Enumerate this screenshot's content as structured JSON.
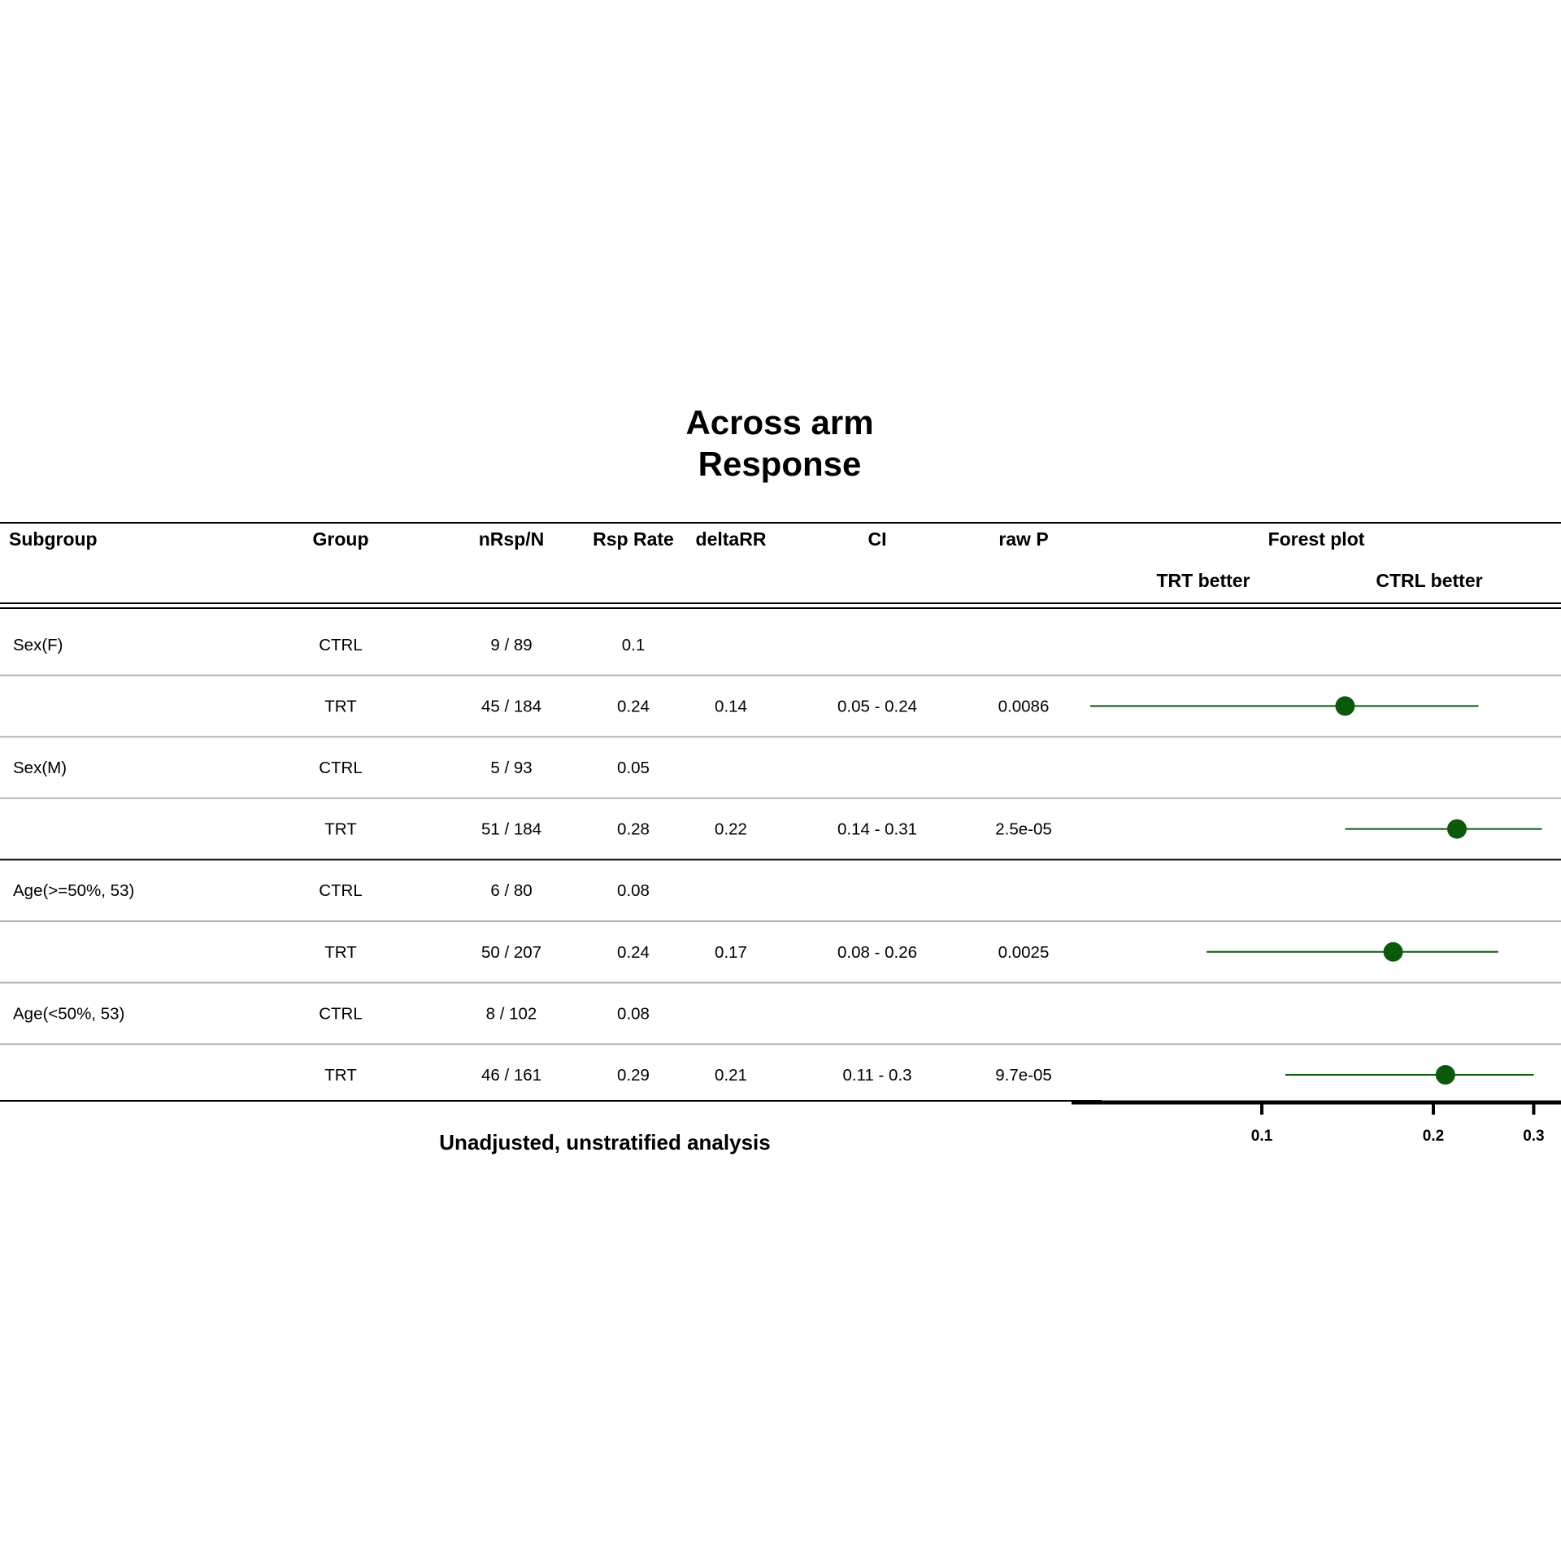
{
  "title_lines": [
    "Across arm",
    "Response"
  ],
  "headers": {
    "subgroup": "Subgroup",
    "group": "Group",
    "nrsp": "nRsp/N",
    "rate": "Rsp Rate",
    "delta": "deltaRR",
    "ci": "CI",
    "p": "raw P",
    "forest": "Forest plot",
    "trt_better": "TRT better",
    "ctrl_better": "CTRL better"
  },
  "rows": [
    {
      "subgroup": "Sex(F)",
      "group": "CTRL",
      "nrsp": "9 / 89",
      "rate": "0.1",
      "delta": "",
      "ci": "",
      "p": ""
    },
    {
      "subgroup": "",
      "group": "TRT",
      "nrsp": "45 / 184",
      "rate": "0.24",
      "delta": "0.14",
      "ci": "0.05 - 0.24",
      "p": "0.0086"
    },
    {
      "subgroup": "Sex(M)",
      "group": "CTRL",
      "nrsp": "5 / 93",
      "rate": "0.05",
      "delta": "",
      "ci": "",
      "p": ""
    },
    {
      "subgroup": "",
      "group": "TRT",
      "nrsp": "51 / 184",
      "rate": "0.28",
      "delta": "0.22",
      "ci": "0.14 - 0.31",
      "p": "2.5e-05"
    },
    {
      "subgroup": "Age(>=50%, 53)",
      "group": "CTRL",
      "nrsp": "6 / 80",
      "rate": "0.08",
      "delta": "",
      "ci": "",
      "p": ""
    },
    {
      "subgroup": "",
      "group": "TRT",
      "nrsp": "50 / 207",
      "rate": "0.24",
      "delta": "0.17",
      "ci": "0.08 - 0.26",
      "p": "0.0025"
    },
    {
      "subgroup": "Age(<50%, 53)",
      "group": "CTRL",
      "nrsp": "8 / 102",
      "rate": "0.08",
      "delta": "",
      "ci": "",
      "p": ""
    },
    {
      "subgroup": "",
      "group": "TRT",
      "nrsp": "46 / 161",
      "rate": "0.29",
      "delta": "0.21",
      "ci": "0.11 - 0.3",
      "p": "9.7e-05"
    }
  ],
  "footnote": "Unadjusted, unstratified analysis",
  "chart_data": {
    "type": "scatter",
    "title": "Forest plot",
    "x_scale": "log",
    "x_ticks": [
      0.1,
      0.2,
      0.3
    ],
    "x_tick_labels": [
      "0.1",
      "0.2",
      "0.3"
    ],
    "xlim": [
      0.05,
      0.31
    ],
    "series": [
      {
        "name": "",
        "color": "#0b5a0b",
        "points": [
          {
            "row": 1,
            "estimate": 0.14,
            "lower": 0.05,
            "upper": 0.24
          },
          {
            "row": 3,
            "estimate": 0.22,
            "lower": 0.14,
            "upper": 0.31
          },
          {
            "row": 5,
            "estimate": 0.17,
            "lower": 0.08,
            "upper": 0.26
          },
          {
            "row": 7,
            "estimate": 0.21,
            "lower": 0.11,
            "upper": 0.3
          }
        ]
      }
    ],
    "labels": {
      "left": "TRT better",
      "right": "CTRL better"
    }
  }
}
